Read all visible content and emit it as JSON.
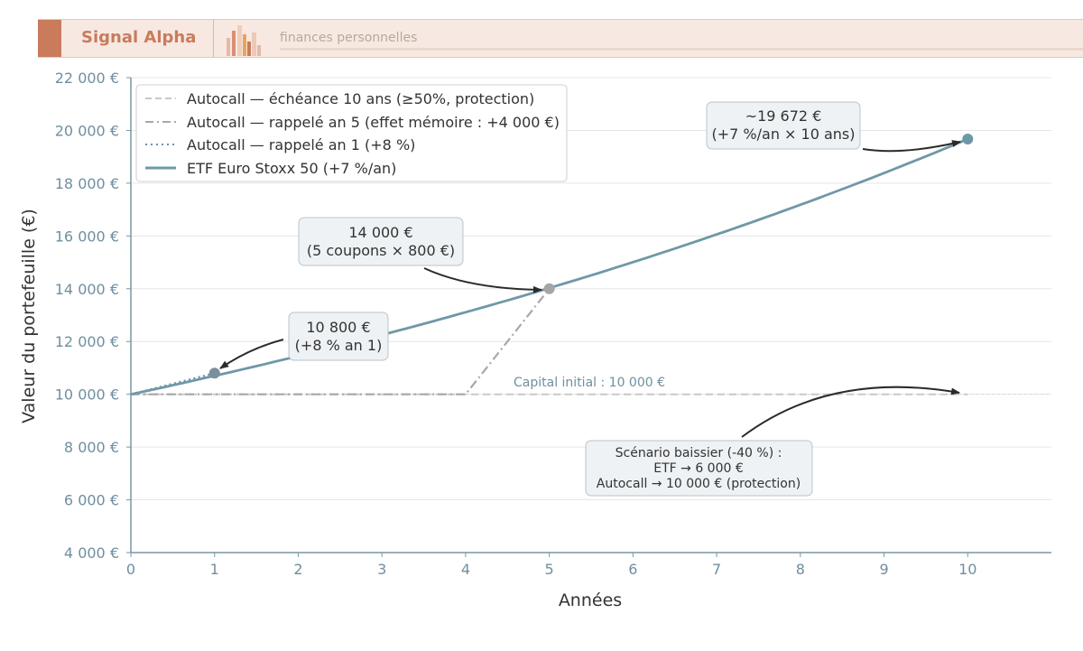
{
  "header": {
    "brand": "Signal Alpha",
    "tagline": "finances personnelles",
    "colors": {
      "brand": "#c97b5c",
      "band": "#f7e9e1"
    }
  },
  "chart_data": {
    "type": "line",
    "title": "",
    "xlabel": "Années",
    "ylabel": "Valeur du portefeuille (€)",
    "xlim": [
      0,
      11
    ],
    "ylim": [
      4000,
      22000
    ],
    "x_ticks": [
      "0",
      "1",
      "2",
      "3",
      "4",
      "5",
      "6",
      "7",
      "8",
      "9",
      "10"
    ],
    "y_ticks": [
      "4 000 €",
      "6 000 €",
      "8 000 €",
      "10 000 €",
      "12 000 €",
      "14 000 €",
      "16 000 €",
      "18 000 €",
      "20 000 €",
      "22 000 €"
    ],
    "y_tick_values": [
      4000,
      6000,
      8000,
      10000,
      12000,
      14000,
      16000,
      18000,
      20000,
      22000
    ],
    "grid": true,
    "legend_position": "top-left",
    "series": [
      {
        "name": "Autocall — échéance 10 ans (≥50%, protection)",
        "style": "dashed",
        "color": "#c8c8c8",
        "x": [
          0,
          10
        ],
        "y": [
          10000,
          10000
        ]
      },
      {
        "name": "Autocall — rappelé an 5 (effet mémoire : +4 000 €)",
        "style": "dashdot",
        "color": "#a8a8a8",
        "x": [
          0,
          4,
          5
        ],
        "y": [
          10000,
          10000,
          14000
        ]
      },
      {
        "name": "Autocall — rappelé an 1 (+8 %)",
        "style": "dotted",
        "color": "#6f8faa",
        "x": [
          0,
          1
        ],
        "y": [
          10000,
          10800
        ]
      },
      {
        "name": "ETF Euro Stoxx 50 (+7 %/an)",
        "style": "solid",
        "color": "#6e98a8",
        "x": [
          0,
          1,
          2,
          3,
          4,
          5,
          6,
          7,
          8,
          9,
          10
        ],
        "y": [
          10000,
          10700,
          11449,
          12250,
          13108,
          14026,
          15007,
          16058,
          17182,
          18385,
          19672
        ]
      }
    ],
    "markers": [
      {
        "x": 1,
        "y": 10800,
        "color": "#7a909c"
      },
      {
        "x": 5,
        "y": 14000,
        "color": "#a5a5a5"
      },
      {
        "x": 10,
        "y": 19672,
        "color": "#6e98a8"
      }
    ],
    "reference_line": {
      "y": 10000,
      "label": "Capital initial : 10 000 €"
    },
    "annotations": [
      {
        "lines": [
          "10 800 €",
          "(+8 % an 1)"
        ]
      },
      {
        "lines": [
          "14 000 €",
          "(5 coupons × 800 €)"
        ]
      },
      {
        "lines": [
          "~19 672 €",
          "(+7 %/an × 10 ans)"
        ]
      },
      {
        "lines": [
          "Scénario baissier (-40 %) :",
          "ETF → 6 000 €",
          "Autocall → 10 000 € (protection)"
        ]
      }
    ]
  }
}
